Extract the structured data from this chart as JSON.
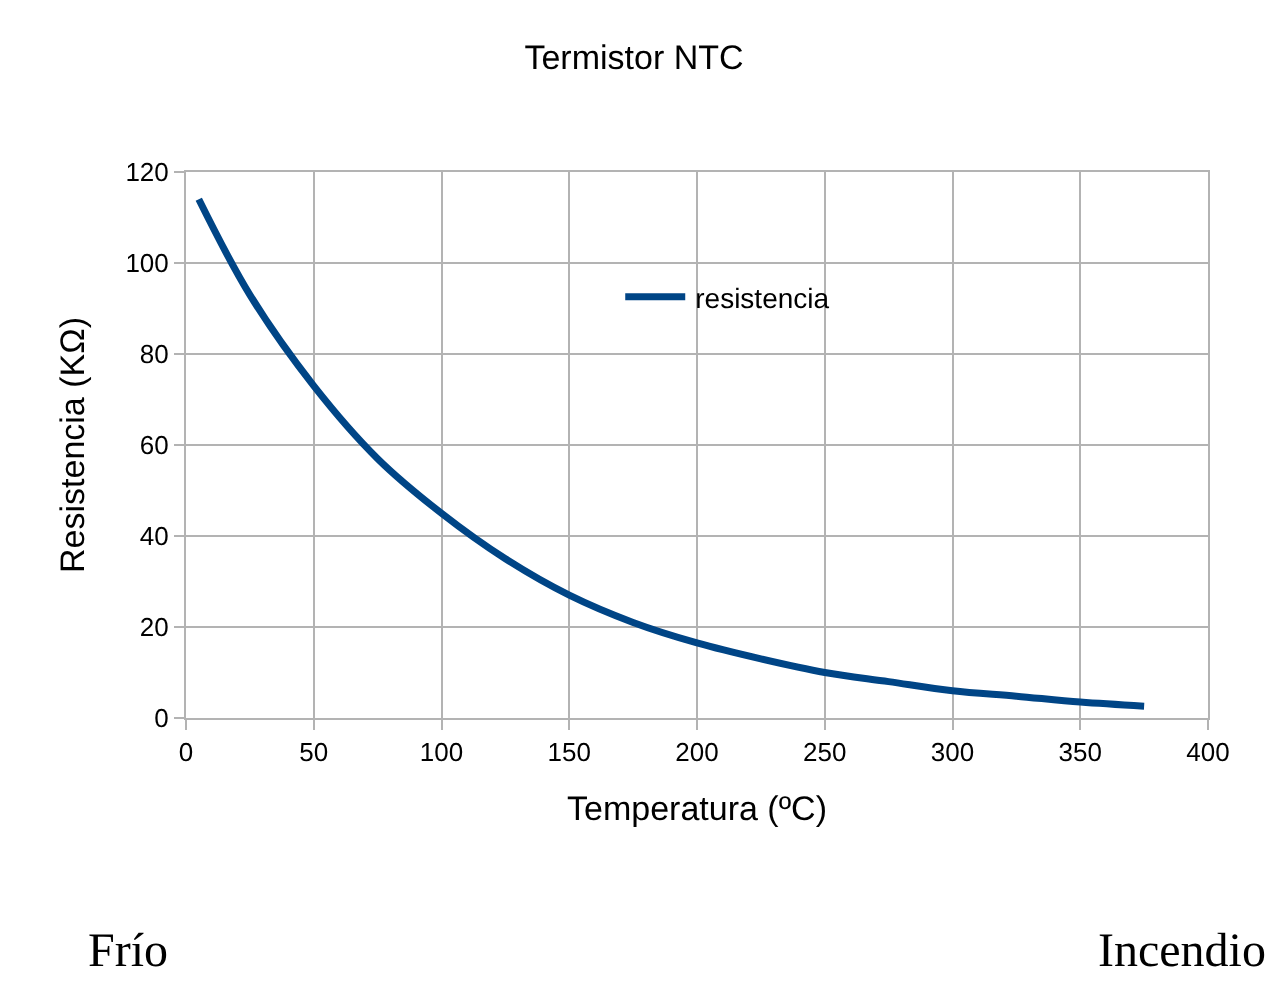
{
  "chart_data": {
    "type": "line",
    "title": "Termistor NTC",
    "xlabel": "Temperatura (ºC)",
    "ylabel": "Resistencia (KΩ)",
    "x": [
      5,
      25,
      50,
      75,
      100,
      125,
      150,
      175,
      200,
      225,
      250,
      275,
      300,
      325,
      350,
      375
    ],
    "series": [
      {
        "name": "resistencia",
        "color": "#004586",
        "values": [
          114,
          93,
          73,
          57,
          45,
          35,
          27,
          21,
          16.5,
          13,
          10,
          8,
          6,
          4.8,
          3.5,
          2.6
        ]
      }
    ],
    "xlim": [
      0,
      400
    ],
    "xticks": [
      0,
      50,
      100,
      150,
      200,
      250,
      300,
      350,
      400
    ],
    "ylim": [
      0,
      120
    ],
    "yticks": [
      0,
      20,
      40,
      60,
      80,
      100,
      120
    ],
    "grid": true,
    "legend": "top right",
    "marker": "none",
    "line_style": "solid",
    "annotations": [
      "Frío",
      "Incendio"
    ]
  }
}
